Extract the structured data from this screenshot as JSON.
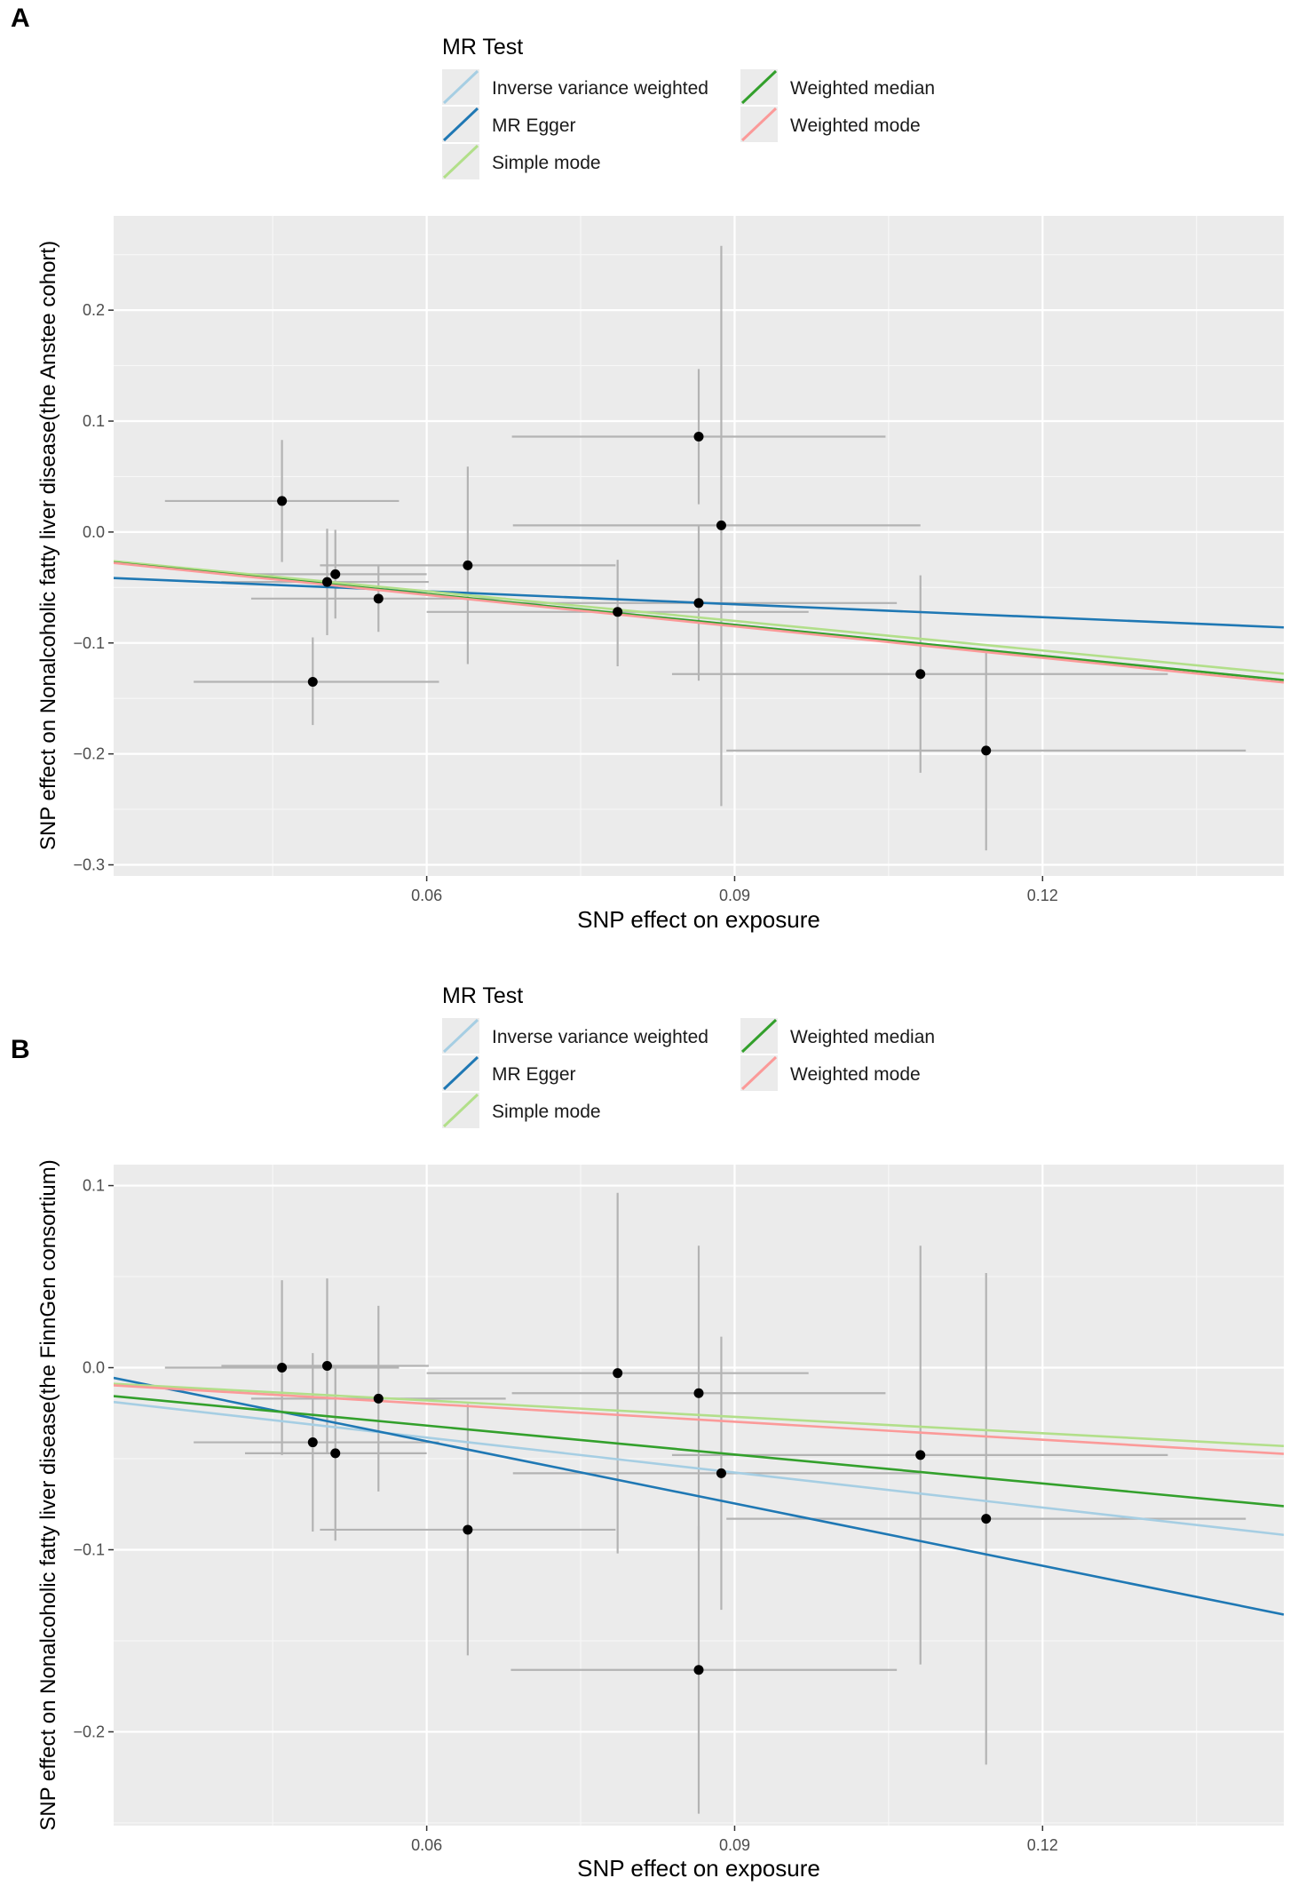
{
  "chart_data": [
    {
      "type": "scatter",
      "panel_label": "A",
      "xlabel": "SNP effect on exposure",
      "ylabel": "SNP effect on Nonalcoholic fatty liver disease(the Anstee cohort)",
      "xlim": [
        0.0295,
        0.1435
      ],
      "ylim": [
        -0.31,
        0.285
      ],
      "x_ticks": [
        0.06,
        0.09,
        0.12
      ],
      "x_tick_labels": [
        "0.06",
        "0.09",
        "0.12"
      ],
      "y_ticks": [
        0.2,
        0.1,
        0.0,
        -0.1,
        -0.2,
        -0.3
      ],
      "y_tick_labels": [
        "0.2",
        "0.1",
        "0.0",
        "−0.1",
        "−0.2",
        "−0.3"
      ],
      "grid": true,
      "legend": {
        "title": "MR Test",
        "position": "top",
        "items": [
          {
            "label": "Inverse variance weighted",
            "color": "#a6cee3"
          },
          {
            "label": "MR Egger",
            "color": "#1f78b4"
          },
          {
            "label": "Simple mode",
            "color": "#b2df8a"
          },
          {
            "label": "Weighted median",
            "color": "#33a02c"
          },
          {
            "label": "Weighted mode",
            "color": "#fb9a99"
          }
        ]
      },
      "points": [
        {
          "x": 0.0459,
          "y": 0.028,
          "xmin": 0.0345,
          "xmax": 0.0573,
          "ymin": -0.027,
          "ymax": 0.083
        },
        {
          "x": 0.0503,
          "y": -0.045,
          "xmin": 0.04,
          "xmax": 0.0602,
          "ymin": -0.093,
          "ymax": 0.003
        },
        {
          "x": 0.0511,
          "y": -0.038,
          "xmin": 0.0423,
          "xmax": 0.06,
          "ymin": -0.078,
          "ymax": 0.002
        },
        {
          "x": 0.0489,
          "y": -0.135,
          "xmin": 0.0373,
          "xmax": 0.0612,
          "ymin": -0.174,
          "ymax": -0.095
        },
        {
          "x": 0.0553,
          "y": -0.06,
          "xmin": 0.0429,
          "xmax": 0.0677,
          "ymin": -0.09,
          "ymax": -0.03
        },
        {
          "x": 0.064,
          "y": -0.03,
          "xmin": 0.0496,
          "xmax": 0.0784,
          "ymin": -0.119,
          "ymax": 0.059
        },
        {
          "x": 0.0786,
          "y": -0.072,
          "xmin": 0.06,
          "xmax": 0.0972,
          "ymin": -0.121,
          "ymax": -0.025
        },
        {
          "x": 0.0865,
          "y": 0.086,
          "xmin": 0.0683,
          "xmax": 0.1047,
          "ymin": 0.025,
          "ymax": 0.147
        },
        {
          "x": 0.0865,
          "y": -0.064,
          "xmin": 0.0682,
          "xmax": 0.1058,
          "ymin": -0.134,
          "ymax": 0.006
        },
        {
          "x": 0.0887,
          "y": 0.006,
          "xmin": 0.0684,
          "xmax": 0.1081,
          "ymin": -0.247,
          "ymax": 0.258
        },
        {
          "x": 0.1081,
          "y": -0.128,
          "xmin": 0.0839,
          "xmax": 0.1322,
          "ymin": -0.217,
          "ymax": -0.039
        },
        {
          "x": 0.1145,
          "y": -0.197,
          "xmin": 0.0892,
          "xmax": 0.1398,
          "ymin": -0.287,
          "ymax": -0.107
        }
      ],
      "lines": [
        {
          "name": "Inverse variance weighted",
          "color": "#a6cee3",
          "intercept": 0.0,
          "slope": -0.93
        },
        {
          "name": "MR Egger",
          "color": "#1f78b4",
          "intercept": -0.03,
          "slope": -0.39
        },
        {
          "name": "Simple mode",
          "color": "#b2df8a",
          "intercept": 0.0,
          "slope": -0.89
        },
        {
          "name": "Weighted median",
          "color": "#33a02c",
          "intercept": 0.0,
          "slope": -0.93
        },
        {
          "name": "Weighted mode",
          "color": "#fb9a99",
          "intercept": 0.0,
          "slope": -0.945
        }
      ]
    },
    {
      "type": "scatter",
      "panel_label": "B",
      "xlabel": "SNP effect on exposure",
      "ylabel": "SNP effect on Nonalcoholic fatty liver disease(the FinnGen consortium)",
      "xlim": [
        0.0295,
        0.1435
      ],
      "ylim": [
        -0.2515,
        0.1115
      ],
      "x_ticks": [
        0.06,
        0.09,
        0.12
      ],
      "x_tick_labels": [
        "0.06",
        "0.09",
        "0.12"
      ],
      "y_ticks": [
        0.1,
        0.0,
        -0.1,
        -0.2
      ],
      "y_tick_labels": [
        "0.1",
        "0.0",
        "−0.1",
        "−0.2"
      ],
      "grid": true,
      "legend": {
        "title": "MR Test",
        "position": "top",
        "items": [
          {
            "label": "Inverse variance weighted",
            "color": "#a6cee3"
          },
          {
            "label": "MR Egger",
            "color": "#1f78b4"
          },
          {
            "label": "Simple mode",
            "color": "#b2df8a"
          },
          {
            "label": "Weighted median",
            "color": "#33a02c"
          },
          {
            "label": "Weighted mode",
            "color": "#fb9a99"
          }
        ]
      },
      "points": [
        {
          "x": 0.0459,
          "y": 0.0,
          "xmin": 0.0345,
          "xmax": 0.0573,
          "ymin": -0.048,
          "ymax": 0.048
        },
        {
          "x": 0.0503,
          "y": 0.001,
          "xmin": 0.04,
          "xmax": 0.0602,
          "ymin": -0.047,
          "ymax": 0.049
        },
        {
          "x": 0.0553,
          "y": -0.017,
          "xmin": 0.0429,
          "xmax": 0.0677,
          "ymin": -0.068,
          "ymax": 0.034
        },
        {
          "x": 0.0489,
          "y": -0.041,
          "xmin": 0.0373,
          "xmax": 0.0612,
          "ymin": -0.09,
          "ymax": 0.008
        },
        {
          "x": 0.0511,
          "y": -0.047,
          "xmin": 0.0423,
          "xmax": 0.06,
          "ymin": -0.095,
          "ymax": 0.001
        },
        {
          "x": 0.064,
          "y": -0.089,
          "xmin": 0.0496,
          "xmax": 0.0784,
          "ymin": -0.158,
          "ymax": -0.02
        },
        {
          "x": 0.0786,
          "y": -0.003,
          "xmin": 0.06,
          "xmax": 0.0972,
          "ymin": -0.102,
          "ymax": 0.096
        },
        {
          "x": 0.0865,
          "y": -0.014,
          "xmin": 0.0683,
          "xmax": 0.1047,
          "ymin": -0.095,
          "ymax": 0.067
        },
        {
          "x": 0.0865,
          "y": -0.166,
          "xmin": 0.0682,
          "xmax": 0.1058,
          "ymin": -0.245,
          "ymax": -0.087
        },
        {
          "x": 0.0887,
          "y": -0.058,
          "xmin": 0.0684,
          "xmax": 0.1081,
          "ymin": -0.133,
          "ymax": 0.017
        },
        {
          "x": 0.1081,
          "y": -0.048,
          "xmin": 0.0839,
          "xmax": 0.1322,
          "ymin": -0.163,
          "ymax": 0.067
        },
        {
          "x": 0.1145,
          "y": -0.083,
          "xmin": 0.0892,
          "xmax": 0.1398,
          "ymin": -0.218,
          "ymax": 0.052
        }
      ],
      "lines": [
        {
          "name": "Inverse variance weighted",
          "color": "#a6cee3",
          "intercept": 0.0,
          "slope": -0.64
        },
        {
          "name": "MR Egger",
          "color": "#1f78b4",
          "intercept": 0.028,
          "slope": -1.14
        },
        {
          "name": "Simple mode",
          "color": "#b2df8a",
          "intercept": 0.0,
          "slope": -0.3
        },
        {
          "name": "Weighted median",
          "color": "#33a02c",
          "intercept": 0.0,
          "slope": -0.53
        },
        {
          "name": "Weighted mode",
          "color": "#fb9a99",
          "intercept": 0.0,
          "slope": -0.33
        }
      ]
    }
  ]
}
